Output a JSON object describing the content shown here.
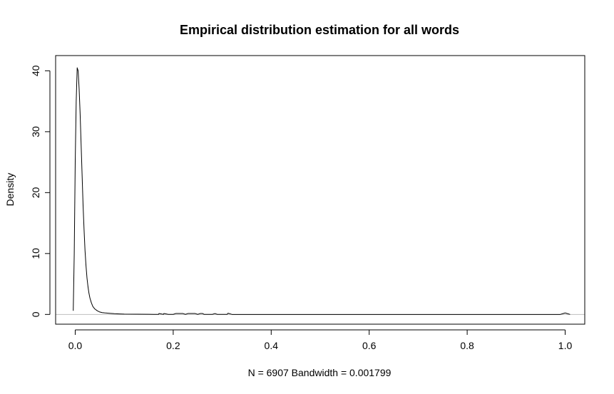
{
  "chart_data": {
    "type": "line",
    "title": "Empirical distribution estimation for all words",
    "xlabel": "N = 6907   Bandwidth = 0.001799",
    "ylabel": "Density",
    "xlim": [
      -0.04,
      1.04
    ],
    "ylim": [
      -1.6,
      42.5
    ],
    "x_ticks": [
      0,
      0.2,
      0.4,
      0.6,
      0.8,
      1.0
    ],
    "x_tick_labels": [
      "0.0",
      "0.2",
      "0.4",
      "0.6",
      "0.8",
      "1.0"
    ],
    "y_ticks": [
      0,
      10,
      20,
      30,
      40
    ],
    "y_tick_labels": [
      "0",
      "10",
      "20",
      "30",
      "40"
    ],
    "grid": false,
    "baseline": {
      "y": 0,
      "color": "#bfbfbf"
    },
    "series": [
      {
        "color": "#000000",
        "x": [
          -0.004,
          -0.002,
          0.0,
          0.002,
          0.004,
          0.006,
          0.008,
          0.01,
          0.012,
          0.014,
          0.016,
          0.018,
          0.02,
          0.022,
          0.024,
          0.026,
          0.028,
          0.03,
          0.033,
          0.036,
          0.04,
          0.045,
          0.05,
          0.055,
          0.06,
          0.07,
          0.08,
          0.09,
          0.1,
          0.15,
          0.16,
          0.17,
          0.171,
          0.18,
          0.181,
          0.19,
          0.2,
          0.205,
          0.21,
          0.22,
          0.225,
          0.23,
          0.24,
          0.245,
          0.25,
          0.255,
          0.26,
          0.263,
          0.27,
          0.28,
          0.285,
          0.29,
          0.3,
          0.31,
          0.312,
          0.32,
          0.5,
          0.99,
          0.998,
          1.0,
          1.002,
          1.01
        ],
        "y": [
          0.6,
          10.0,
          25.0,
          35.0,
          40.5,
          40.0,
          37.0,
          33.0,
          28.0,
          23.0,
          18.0,
          14.0,
          10.5,
          8.0,
          6.0,
          4.6,
          3.5,
          2.7,
          1.9,
          1.3,
          0.9,
          0.6,
          0.4,
          0.3,
          0.25,
          0.18,
          0.12,
          0.08,
          0.05,
          0.02,
          0.01,
          0.01,
          0.15,
          0.01,
          0.15,
          0.01,
          0.01,
          0.15,
          0.15,
          0.15,
          0.01,
          0.15,
          0.15,
          0.15,
          0.01,
          0.15,
          0.15,
          0.01,
          0.01,
          0.01,
          0.15,
          0.01,
          0.01,
          0.01,
          0.2,
          0.0,
          0.0,
          0.0,
          0.2,
          0.25,
          0.2,
          0.0
        ]
      }
    ]
  }
}
